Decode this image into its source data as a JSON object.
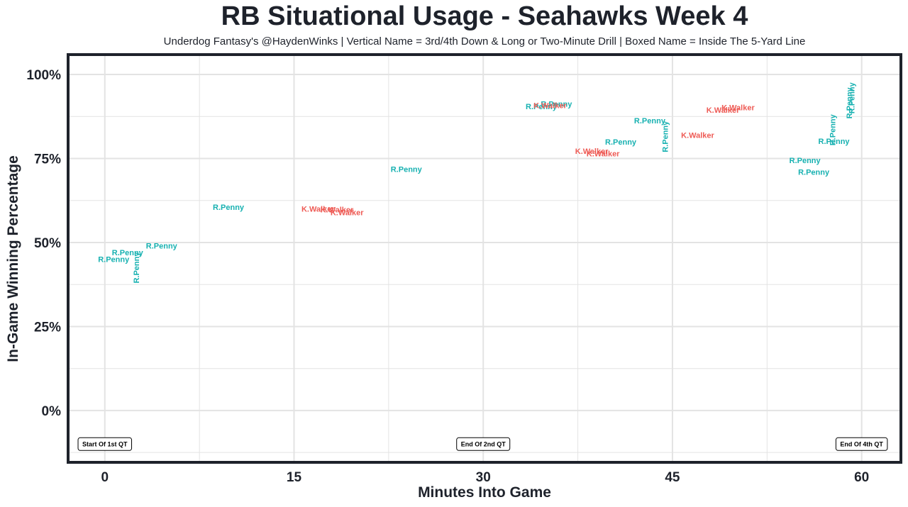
{
  "colors": {
    "penny": "#17b1b1",
    "walker": "#ee5b55",
    "frame": "#1e222b",
    "grid": "#e3e3e3"
  },
  "chart_data": {
    "type": "scatter",
    "title": "RB Situational Usage - Seahawks Week 4",
    "subtitle": "Underdog Fantasy's @HaydenWinks | Vertical Name = 3rd/4th Down & Long or Two-Minute Drill | Boxed Name = Inside The 5-Yard Line",
    "xlabel": "Minutes Into Game",
    "ylabel": "In-Game Winning Percentage",
    "xlim": [
      -2.8,
      63
    ],
    "ylim": [
      -15,
      105.5
    ],
    "xticks": [
      0,
      15,
      30,
      45,
      60
    ],
    "xtick_labels": [
      "0",
      "15",
      "30",
      "45",
      "60"
    ],
    "yticks": [
      0,
      25,
      50,
      75,
      100
    ],
    "ytick_labels": [
      "0%",
      "25%",
      "50%",
      "75%",
      "100%"
    ],
    "grid": true,
    "annotations": [
      {
        "text": "Start Of 1st QT",
        "x": 0,
        "y": -10
      },
      {
        "text": "End Of 2nd QT",
        "x": 30,
        "y": -10
      },
      {
        "text": "End Of 4th QT",
        "x": 60,
        "y": -10
      }
    ],
    "series": [
      {
        "name": "R.Penny",
        "points": [
          {
            "x": 0.7,
            "y": 45,
            "label": "R.Penny",
            "vertical": false
          },
          {
            "x": 1.8,
            "y": 47,
            "label": "R.Penny",
            "vertical": false
          },
          {
            "x": 2.5,
            "y": 42.5,
            "label": "R.Penny",
            "vertical": true
          },
          {
            "x": 4.5,
            "y": 49,
            "label": "R.Penny",
            "vertical": false
          },
          {
            "x": 9.8,
            "y": 60.5,
            "label": "R.Penny",
            "vertical": false
          },
          {
            "x": 23.9,
            "y": 71.8,
            "label": "R.Penny",
            "vertical": false
          },
          {
            "x": 34.6,
            "y": 90.5,
            "label": "R.Penny",
            "vertical": false
          },
          {
            "x": 35.8,
            "y": 91.3,
            "label": "R.Penny",
            "vertical": false
          },
          {
            "x": 40.9,
            "y": 80,
            "label": "R.Penny",
            "vertical": false
          },
          {
            "x": 43.2,
            "y": 86.3,
            "label": "R.Penny",
            "vertical": false
          },
          {
            "x": 44.4,
            "y": 81.5,
            "label": "R.Penny",
            "vertical": true
          },
          {
            "x": 55.5,
            "y": 74.5,
            "label": "R.Penny",
            "vertical": false
          },
          {
            "x": 56.2,
            "y": 71,
            "label": "R.Penny",
            "vertical": false
          },
          {
            "x": 57.7,
            "y": 83.5,
            "label": "R.Penny",
            "vertical": true
          },
          {
            "x": 57.8,
            "y": 80.2,
            "label": "R.Penny",
            "vertical": false
          },
          {
            "x": 59.0,
            "y": 91.5,
            "label": "R.Penny",
            "vertical": true
          },
          {
            "x": 59.2,
            "y": 93,
            "label": "R.Penny",
            "vertical": true
          }
        ]
      },
      {
        "name": "K.Walker",
        "points": [
          {
            "x": 16.9,
            "y": 60,
            "label": "K.Walker",
            "vertical": false
          },
          {
            "x": 18.4,
            "y": 59.8,
            "label": "K.Walker",
            "vertical": false
          },
          {
            "x": 19.2,
            "y": 59,
            "label": "K.Walker",
            "vertical": false
          },
          {
            "x": 35.3,
            "y": 90.8,
            "label": "K.Walker",
            "vertical": false
          },
          {
            "x": 38.6,
            "y": 77.2,
            "label": "K.Walker",
            "vertical": false
          },
          {
            "x": 39.5,
            "y": 76.5,
            "label": "K.Walker",
            "vertical": false
          },
          {
            "x": 47.0,
            "y": 82,
            "label": "K.Walker",
            "vertical": false
          },
          {
            "x": 49.0,
            "y": 89.5,
            "label": "K.Walker",
            "vertical": false
          },
          {
            "x": 50.2,
            "y": 90.2,
            "label": "K.Walker",
            "vertical": false
          }
        ]
      }
    ]
  }
}
